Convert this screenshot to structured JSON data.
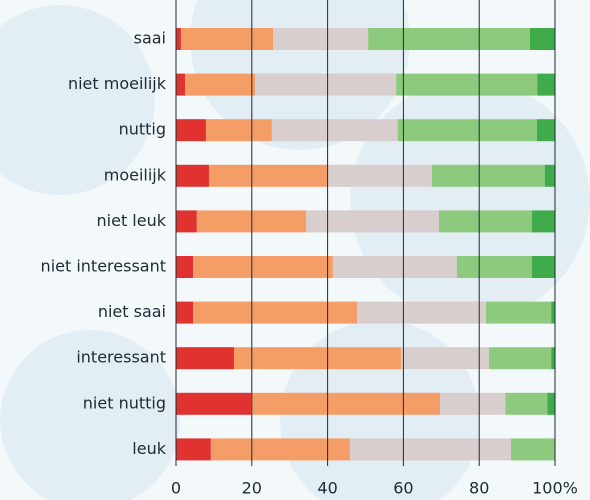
{
  "chart_data": {
    "type": "stacked-bar-horizontal",
    "categories": [
      "saai",
      "niet moeilijk",
      "nuttig",
      "moeilijk",
      "niet leuk",
      "niet interessant",
      "niet saai",
      "interessant",
      "niet nuttig",
      "leuk"
    ],
    "series": [
      {
        "color": "#e0322f",
        "values": [
          1.3,
          2.4,
          7.9,
          8.7,
          5.5,
          4.5,
          4.5,
          15.3,
          19.8,
          9.2
        ]
      },
      {
        "color": "#f59d67",
        "values": [
          24.3,
          18.5,
          17.4,
          31.4,
          28.8,
          36.9,
          43.3,
          44.1,
          49.9,
          36.7
        ]
      },
      {
        "color": "#d8cecd",
        "values": [
          25.1,
          37.2,
          33.2,
          27.4,
          35.1,
          32.7,
          34.0,
          23.2,
          17.2,
          42.5
        ]
      },
      {
        "color": "#8dca7d",
        "values": [
          42.7,
          37.2,
          36.7,
          29.8,
          24.5,
          19.8,
          17.2,
          16.4,
          11.1,
          11.6
        ]
      },
      {
        "color": "#3fab4b",
        "values": [
          6.6,
          4.7,
          4.7,
          2.6,
          6.1,
          6.1,
          1.1,
          1.1,
          2.1,
          0
        ]
      }
    ],
    "xlim": [
      0,
      100
    ],
    "xticks": [
      0,
      20,
      40,
      60,
      80,
      {
        "value": 100,
        "label": "100%"
      }
    ],
    "grid": true
  }
}
